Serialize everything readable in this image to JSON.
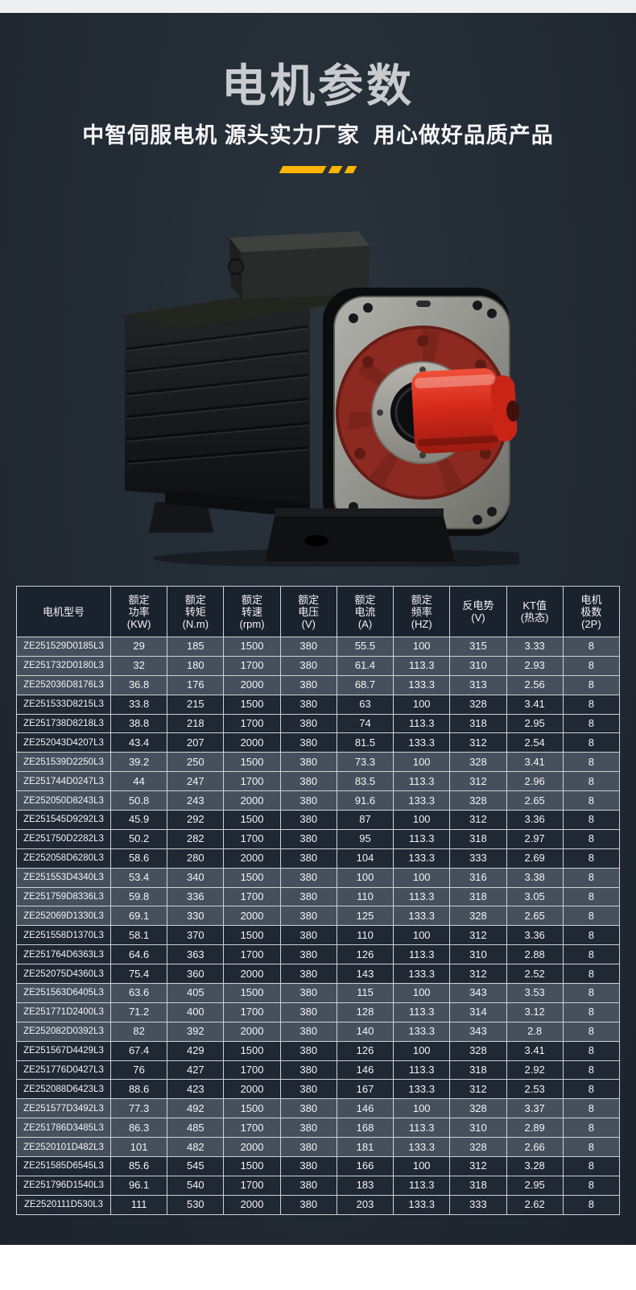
{
  "page": {
    "title": "电机参数",
    "subtitle": "中智伺服电机 源头实力厂家  用心做好品质产品"
  },
  "colors": {
    "accent_yellow": "#ffb400",
    "background_dark": "#232b34",
    "row_light": "#46505c",
    "row_dark": "#1f2833",
    "table_border": "#ccd1d6",
    "title_gray": "#c9cccf",
    "motor_shaft_red": "#d8392a",
    "motor_flange_red": "#8c2a21"
  },
  "table": {
    "columns": [
      "电机型号",
      "额定\n功率\n(KW)",
      "额定\n转矩\n(N.m)",
      "额定\n转速\n(rpm)",
      "额定\n电压\n(V)",
      "额定\n电流\n(A)",
      "额定\n频率\n(HZ)",
      "反电势\n(V)",
      "KT值\n(热态)",
      "电机\n极数\n(2P)"
    ],
    "rows": [
      [
        "ZE251529D0185L3",
        "29",
        "185",
        "1500",
        "380",
        "55.5",
        "100",
        "315",
        "3.33",
        "8"
      ],
      [
        "ZE251732D0180L3",
        "32",
        "180",
        "1700",
        "380",
        "61.4",
        "113.3",
        "310",
        "2.93",
        "8"
      ],
      [
        "ZE252036D8176L3",
        "36.8",
        "176",
        "2000",
        "380",
        "68.7",
        "133.3",
        "313",
        "2.56",
        "8"
      ],
      [
        "ZE251533D8215L3",
        "33.8",
        "215",
        "1500",
        "380",
        "63",
        "100",
        "328",
        "3.41",
        "8"
      ],
      [
        "ZE251738D8218L3",
        "38.8",
        "218",
        "1700",
        "380",
        "74",
        "113.3",
        "318",
        "2.95",
        "8"
      ],
      [
        "ZE252043D4207L3",
        "43.4",
        "207",
        "2000",
        "380",
        "81.5",
        "133.3",
        "312",
        "2.54",
        "8"
      ],
      [
        "ZE251539D2250L3",
        "39.2",
        "250",
        "1500",
        "380",
        "73.3",
        "100",
        "328",
        "3.41",
        "8"
      ],
      [
        "ZE251744D0247L3",
        "44",
        "247",
        "1700",
        "380",
        "83.5",
        "113.3",
        "312",
        "2.96",
        "8"
      ],
      [
        "ZE252050D8243L3",
        "50.8",
        "243",
        "2000",
        "380",
        "91.6",
        "133.3",
        "328",
        "2.65",
        "8"
      ],
      [
        "ZE251545D9292L3",
        "45.9",
        "292",
        "1500",
        "380",
        "87",
        "100",
        "312",
        "3.36",
        "8"
      ],
      [
        "ZE251750D2282L3",
        "50.2",
        "282",
        "1700",
        "380",
        "95",
        "113.3",
        "318",
        "2.97",
        "8"
      ],
      [
        "ZE252058D6280L3",
        "58.6",
        "280",
        "2000",
        "380",
        "104",
        "133.3",
        "333",
        "2.69",
        "8"
      ],
      [
        "ZE251553D4340L3",
        "53.4",
        "340",
        "1500",
        "380",
        "100",
        "100",
        "316",
        "3.38",
        "8"
      ],
      [
        "ZE251759D8336L3",
        "59.8",
        "336",
        "1700",
        "380",
        "110",
        "113.3",
        "318",
        "3.05",
        "8"
      ],
      [
        "ZE252069D1330L3",
        "69.1",
        "330",
        "2000",
        "380",
        "125",
        "133.3",
        "328",
        "2.65",
        "8"
      ],
      [
        "ZE251558D1370L3",
        "58.1",
        "370",
        "1500",
        "380",
        "110",
        "100",
        "312",
        "3.36",
        "8"
      ],
      [
        "ZE251764D6363L3",
        "64.6",
        "363",
        "1700",
        "380",
        "126",
        "113.3",
        "310",
        "2.88",
        "8"
      ],
      [
        "ZE252075D4360L3",
        "75.4",
        "360",
        "2000",
        "380",
        "143",
        "133.3",
        "312",
        "2.52",
        "8"
      ],
      [
        "ZE251563D6405L3",
        "63.6",
        "405",
        "1500",
        "380",
        "115",
        "100",
        "343",
        "3.53",
        "8"
      ],
      [
        "ZE251771D2400L3",
        "71.2",
        "400",
        "1700",
        "380",
        "128",
        "113.3",
        "314",
        "3.12",
        "8"
      ],
      [
        "ZE252082D0392L3",
        "82",
        "392",
        "2000",
        "380",
        "140",
        "133.3",
        "343",
        "2.8",
        "8"
      ],
      [
        "ZE251567D4429L3",
        "67.4",
        "429",
        "1500",
        "380",
        "126",
        "100",
        "328",
        "3.41",
        "8"
      ],
      [
        "ZE251776D0427L3",
        "76",
        "427",
        "1700",
        "380",
        "146",
        "113.3",
        "318",
        "2.92",
        "8"
      ],
      [
        "ZE252088D6423L3",
        "88.6",
        "423",
        "2000",
        "380",
        "167",
        "133.3",
        "312",
        "2.53",
        "8"
      ],
      [
        "ZE251577D3492L3",
        "77.3",
        "492",
        "1500",
        "380",
        "146",
        "100",
        "328",
        "3.37",
        "8"
      ],
      [
        "ZE251786D3485L3",
        "86.3",
        "485",
        "1700",
        "380",
        "168",
        "113.3",
        "310",
        "2.89",
        "8"
      ],
      [
        "ZE2520101D482L3",
        "101",
        "482",
        "2000",
        "380",
        "181",
        "133.3",
        "328",
        "2.66",
        "8"
      ],
      [
        "ZE251585D6545L3",
        "85.6",
        "545",
        "1500",
        "380",
        "166",
        "100",
        "312",
        "3.28",
        "8"
      ],
      [
        "ZE251796D1540L3",
        "96.1",
        "540",
        "1700",
        "380",
        "183",
        "113.3",
        "318",
        "2.95",
        "8"
      ],
      [
        "ZE2520111D530L3",
        "111",
        "530",
        "2000",
        "380",
        "203",
        "133.3",
        "333",
        "2.62",
        "8"
      ]
    ]
  }
}
